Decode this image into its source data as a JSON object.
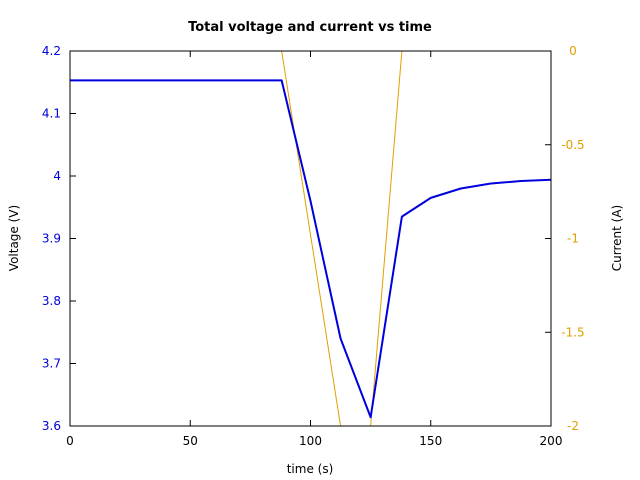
{
  "chart_data": {
    "type": "line",
    "title": "Total voltage and current vs time",
    "xlabel": "time (s)",
    "ylabel_left": "Voltage (V)",
    "ylabel_right": "Current (A)",
    "xlim": [
      0,
      200
    ],
    "ylim_left": [
      3.6,
      4.2
    ],
    "ylim_right": [
      -2,
      0
    ],
    "x_ticks": [
      0,
      50,
      100,
      150,
      200
    ],
    "x_tick_labels": [
      "0",
      "50",
      "100",
      "150",
      "200"
    ],
    "y_left_ticks": [
      3.6,
      3.7,
      3.8,
      3.9,
      4.0,
      4.1,
      4.2
    ],
    "y_left_tick_labels": [
      "3.6",
      "3.7",
      "3.8",
      "3.9",
      "4",
      "4.1",
      "4.2"
    ],
    "y_right_ticks": [
      -2,
      -1.5,
      -1,
      -0.5,
      0
    ],
    "y_right_tick_labels": [
      "-2",
      "-1.5",
      "-1",
      "-0.5",
      "0"
    ],
    "grid": false,
    "colors": {
      "voltage": "#0000dd",
      "current": "#e0a000",
      "axes": "#000000"
    },
    "series": [
      {
        "axis": "left",
        "x": [
          0,
          88,
          100,
          112.5,
          125,
          138,
          150,
          162.5,
          175,
          187.5,
          200
        ],
        "y": [
          4.153,
          4.153,
          3.96,
          3.74,
          3.614,
          3.935,
          3.965,
          3.98,
          3.988,
          3.992,
          3.994
        ]
      },
      {
        "axis": "right",
        "x": [
          88,
          112.5,
          125,
          138
        ],
        "y": [
          0,
          -2,
          -2,
          0
        ]
      }
    ]
  }
}
